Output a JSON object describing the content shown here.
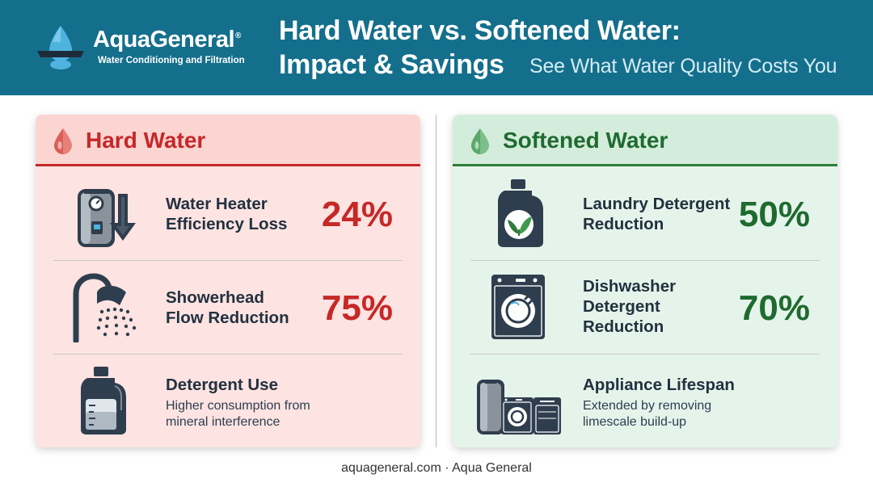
{
  "brand": {
    "name": "AquaGeneral",
    "mark": "®",
    "tagline": "Water Conditioning and Filtration"
  },
  "header": {
    "title_line1": "Hard Water vs. Softened Water:",
    "title_line2": "Impact & Savings",
    "subtitle": "See What Water Quality Costs You"
  },
  "hard_water": {
    "title": "Hard Water",
    "rows": [
      {
        "icon": "water-heater-down-arrow-icon",
        "label_lines": [
          "Water Heater",
          "Efficiency Loss"
        ],
        "value": "24%"
      },
      {
        "icon": "showerhead-icon",
        "label_lines": [
          "Showerhead",
          "Flow Reduction"
        ],
        "value": "75%"
      },
      {
        "icon": "detergent-bottle-icon",
        "label_lines": [
          "Detergent Use"
        ],
        "desc_lines": [
          "Higher consumption from",
          "mineral interference"
        ]
      }
    ]
  },
  "softened_water": {
    "title": "Softened Water",
    "rows": [
      {
        "icon": "laundry-detergent-leaf-icon",
        "label_lines": [
          "Laundry Detergent",
          "Reduction"
        ],
        "value": "50%"
      },
      {
        "icon": "dishwasher-icon",
        "label_lines": [
          "Dishwasher",
          "Detergent",
          "Reduction"
        ],
        "value": "70%"
      },
      {
        "icon": "appliances-icon",
        "label_lines": [
          "Appliance Lifespan"
        ],
        "desc_lines": [
          "Extended by removing",
          "limescale build-up"
        ]
      }
    ]
  },
  "colors": {
    "header_bg": "#146f8c",
    "hard_accent": "#c62828",
    "soft_accent": "#1e6b2f",
    "icon_dark": "#2f3e4e"
  },
  "footer": {
    "text": "aquageneral.com · Aqua General"
  }
}
